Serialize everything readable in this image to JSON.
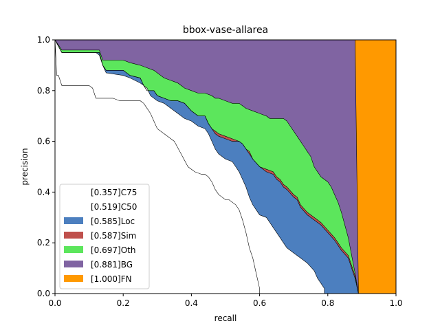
{
  "chart_data": {
    "type": "area",
    "title": "bbox-vase-allarea",
    "xlabel": "recall",
    "ylabel": "precision",
    "xlim": [
      0,
      1
    ],
    "ylim": [
      0,
      1
    ],
    "xticks": [
      "0.0",
      "0.2",
      "0.4",
      "0.6",
      "0.8",
      "1.0"
    ],
    "yticks": [
      "0.0",
      "0.2",
      "0.4",
      "0.6",
      "0.8",
      "1.0"
    ],
    "grid": false,
    "legend_position": "lower-left",
    "series": [
      {
        "name": "[0.357]C75",
        "color": "#ffffff",
        "points": [
          [
            0,
            1.0
          ],
          [
            0.005,
            0.86
          ],
          [
            0.01,
            0.86
          ],
          [
            0.02,
            0.82
          ],
          [
            0.1,
            0.82
          ],
          [
            0.11,
            0.81
          ],
          [
            0.12,
            0.77
          ],
          [
            0.17,
            0.77
          ],
          [
            0.19,
            0.76
          ],
          [
            0.25,
            0.76
          ],
          [
            0.26,
            0.75
          ],
          [
            0.27,
            0.73
          ],
          [
            0.28,
            0.71
          ],
          [
            0.29,
            0.68
          ],
          [
            0.3,
            0.65
          ],
          [
            0.32,
            0.63
          ],
          [
            0.33,
            0.62
          ],
          [
            0.35,
            0.6
          ],
          [
            0.37,
            0.55
          ],
          [
            0.39,
            0.5
          ],
          [
            0.41,
            0.48
          ],
          [
            0.43,
            0.47
          ],
          [
            0.44,
            0.47
          ],
          [
            0.45,
            0.46
          ],
          [
            0.46,
            0.44
          ],
          [
            0.47,
            0.41
          ],
          [
            0.48,
            0.39
          ],
          [
            0.5,
            0.37
          ],
          [
            0.51,
            0.37
          ],
          [
            0.53,
            0.35
          ],
          [
            0.54,
            0.33
          ],
          [
            0.55,
            0.29
          ],
          [
            0.56,
            0.24
          ],
          [
            0.57,
            0.18
          ],
          [
            0.58,
            0.14
          ],
          [
            0.59,
            0.08
          ],
          [
            0.6,
            0.02
          ],
          [
            0.6,
            0
          ]
        ]
      },
      {
        "name": "[0.519]C50",
        "color": "#ffffff",
        "points": [
          [
            0,
            1.0
          ],
          [
            0.02,
            0.95
          ],
          [
            0.12,
            0.95
          ],
          [
            0.13,
            0.94
          ],
          [
            0.14,
            0.9
          ],
          [
            0.15,
            0.87
          ],
          [
            0.2,
            0.86
          ],
          [
            0.22,
            0.85
          ],
          [
            0.25,
            0.83
          ],
          [
            0.26,
            0.82
          ],
          [
            0.27,
            0.81
          ],
          [
            0.28,
            0.78
          ],
          [
            0.3,
            0.76
          ],
          [
            0.32,
            0.75
          ],
          [
            0.34,
            0.73
          ],
          [
            0.36,
            0.71
          ],
          [
            0.38,
            0.69
          ],
          [
            0.4,
            0.68
          ],
          [
            0.42,
            0.66
          ],
          [
            0.44,
            0.65
          ],
          [
            0.45,
            0.63
          ],
          [
            0.46,
            0.6
          ],
          [
            0.47,
            0.57
          ],
          [
            0.48,
            0.55
          ],
          [
            0.5,
            0.53
          ],
          [
            0.52,
            0.52
          ],
          [
            0.53,
            0.5
          ],
          [
            0.54,
            0.48
          ],
          [
            0.55,
            0.45
          ],
          [
            0.56,
            0.42
          ],
          [
            0.57,
            0.38
          ],
          [
            0.58,
            0.35
          ],
          [
            0.59,
            0.33
          ],
          [
            0.6,
            0.31
          ],
          [
            0.62,
            0.3
          ],
          [
            0.63,
            0.28
          ],
          [
            0.64,
            0.26
          ],
          [
            0.65,
            0.24
          ],
          [
            0.66,
            0.22
          ],
          [
            0.67,
            0.2
          ],
          [
            0.68,
            0.18
          ],
          [
            0.7,
            0.16
          ],
          [
            0.72,
            0.14
          ],
          [
            0.74,
            0.12
          ],
          [
            0.76,
            0.09
          ],
          [
            0.77,
            0.06
          ],
          [
            0.78,
            0.04
          ],
          [
            0.79,
            0.02
          ],
          [
            0.79,
            0
          ]
        ]
      },
      {
        "name": "[0.585]Loc",
        "color": "#4c7fbf",
        "points": [
          [
            0,
            1.0
          ],
          [
            0.02,
            0.95
          ],
          [
            0.13,
            0.95
          ],
          [
            0.14,
            0.9
          ],
          [
            0.15,
            0.88
          ],
          [
            0.2,
            0.88
          ],
          [
            0.22,
            0.86
          ],
          [
            0.25,
            0.85
          ],
          [
            0.26,
            0.82
          ],
          [
            0.27,
            0.8
          ],
          [
            0.29,
            0.8
          ],
          [
            0.3,
            0.78
          ],
          [
            0.32,
            0.77
          ],
          [
            0.34,
            0.76
          ],
          [
            0.36,
            0.76
          ],
          [
            0.38,
            0.75
          ],
          [
            0.4,
            0.72
          ],
          [
            0.42,
            0.7
          ],
          [
            0.44,
            0.7
          ],
          [
            0.45,
            0.67
          ],
          [
            0.46,
            0.65
          ],
          [
            0.47,
            0.63
          ],
          [
            0.48,
            0.62
          ],
          [
            0.5,
            0.61
          ],
          [
            0.52,
            0.6
          ],
          [
            0.54,
            0.6
          ],
          [
            0.55,
            0.59
          ],
          [
            0.56,
            0.57
          ],
          [
            0.57,
            0.55
          ],
          [
            0.58,
            0.53
          ],
          [
            0.6,
            0.5
          ],
          [
            0.62,
            0.48
          ],
          [
            0.64,
            0.47
          ],
          [
            0.65,
            0.45
          ],
          [
            0.66,
            0.44
          ],
          [
            0.67,
            0.42
          ],
          [
            0.68,
            0.41
          ],
          [
            0.7,
            0.38
          ],
          [
            0.71,
            0.37
          ],
          [
            0.72,
            0.34
          ],
          [
            0.74,
            0.31
          ],
          [
            0.76,
            0.29
          ],
          [
            0.78,
            0.27
          ],
          [
            0.8,
            0.24
          ],
          [
            0.82,
            0.21
          ],
          [
            0.83,
            0.19
          ],
          [
            0.84,
            0.17
          ],
          [
            0.86,
            0.14
          ],
          [
            0.87,
            0.1
          ],
          [
            0.88,
            0.06
          ],
          [
            0.885,
            0.03
          ],
          [
            0.89,
            0
          ]
        ]
      },
      {
        "name": "[0.587]Sim",
        "color": "#bf504c",
        "points": [
          [
            0,
            1.0
          ],
          [
            0.02,
            0.95
          ],
          [
            0.13,
            0.95
          ],
          [
            0.14,
            0.9
          ],
          [
            0.15,
            0.88
          ],
          [
            0.2,
            0.88
          ],
          [
            0.22,
            0.86
          ],
          [
            0.25,
            0.85
          ],
          [
            0.26,
            0.82
          ],
          [
            0.27,
            0.8
          ],
          [
            0.29,
            0.8
          ],
          [
            0.3,
            0.78
          ],
          [
            0.32,
            0.77
          ],
          [
            0.34,
            0.76
          ],
          [
            0.36,
            0.76
          ],
          [
            0.38,
            0.75
          ],
          [
            0.4,
            0.72
          ],
          [
            0.42,
            0.7
          ],
          [
            0.44,
            0.7
          ],
          [
            0.45,
            0.67
          ],
          [
            0.46,
            0.65
          ],
          [
            0.47,
            0.64
          ],
          [
            0.48,
            0.63
          ],
          [
            0.5,
            0.62
          ],
          [
            0.52,
            0.61
          ],
          [
            0.54,
            0.6
          ],
          [
            0.55,
            0.59
          ],
          [
            0.56,
            0.57
          ],
          [
            0.57,
            0.56
          ],
          [
            0.58,
            0.53
          ],
          [
            0.6,
            0.5
          ],
          [
            0.62,
            0.49
          ],
          [
            0.64,
            0.48
          ],
          [
            0.65,
            0.46
          ],
          [
            0.66,
            0.45
          ],
          [
            0.67,
            0.43
          ],
          [
            0.68,
            0.42
          ],
          [
            0.7,
            0.39
          ],
          [
            0.71,
            0.38
          ],
          [
            0.72,
            0.35
          ],
          [
            0.74,
            0.32
          ],
          [
            0.76,
            0.3
          ],
          [
            0.78,
            0.28
          ],
          [
            0.8,
            0.25
          ],
          [
            0.82,
            0.22
          ],
          [
            0.83,
            0.2
          ],
          [
            0.84,
            0.18
          ],
          [
            0.86,
            0.15
          ],
          [
            0.87,
            0.11
          ],
          [
            0.88,
            0.07
          ],
          [
            0.885,
            0.03
          ],
          [
            0.89,
            0
          ]
        ]
      },
      {
        "name": "[0.697]Oth",
        "color": "#5ce65c",
        "points": [
          [
            0,
            1.0
          ],
          [
            0.02,
            0.96
          ],
          [
            0.13,
            0.96
          ],
          [
            0.14,
            0.92
          ],
          [
            0.16,
            0.92
          ],
          [
            0.2,
            0.92
          ],
          [
            0.22,
            0.91
          ],
          [
            0.25,
            0.9
          ],
          [
            0.27,
            0.89
          ],
          [
            0.29,
            0.88
          ],
          [
            0.3,
            0.87
          ],
          [
            0.32,
            0.85
          ],
          [
            0.34,
            0.84
          ],
          [
            0.36,
            0.83
          ],
          [
            0.38,
            0.81
          ],
          [
            0.4,
            0.8
          ],
          [
            0.42,
            0.79
          ],
          [
            0.44,
            0.79
          ],
          [
            0.46,
            0.78
          ],
          [
            0.47,
            0.77
          ],
          [
            0.48,
            0.77
          ],
          [
            0.5,
            0.76
          ],
          [
            0.52,
            0.75
          ],
          [
            0.54,
            0.75
          ],
          [
            0.55,
            0.74
          ],
          [
            0.56,
            0.73
          ],
          [
            0.58,
            0.72
          ],
          [
            0.6,
            0.71
          ],
          [
            0.62,
            0.7
          ],
          [
            0.63,
            0.69
          ],
          [
            0.65,
            0.69
          ],
          [
            0.67,
            0.69
          ],
          [
            0.68,
            0.68
          ],
          [
            0.69,
            0.66
          ],
          [
            0.7,
            0.64
          ],
          [
            0.71,
            0.62
          ],
          [
            0.72,
            0.6
          ],
          [
            0.73,
            0.58
          ],
          [
            0.74,
            0.56
          ],
          [
            0.75,
            0.54
          ],
          [
            0.76,
            0.5
          ],
          [
            0.77,
            0.48
          ],
          [
            0.78,
            0.46
          ],
          [
            0.8,
            0.44
          ],
          [
            0.81,
            0.42
          ],
          [
            0.82,
            0.39
          ],
          [
            0.83,
            0.36
          ],
          [
            0.84,
            0.32
          ],
          [
            0.85,
            0.27
          ],
          [
            0.86,
            0.22
          ],
          [
            0.87,
            0.15
          ],
          [
            0.88,
            0.08
          ],
          [
            0.885,
            0.04
          ],
          [
            0.89,
            0
          ]
        ]
      },
      {
        "name": "[0.881]BG",
        "color": "#8064a2",
        "points": [
          [
            0,
            1.0
          ],
          [
            0.88,
            1.0
          ],
          [
            0.89,
            0
          ]
        ]
      },
      {
        "name": "[1.000]FN",
        "color": "#ff9900",
        "points": [
          [
            0,
            1.0
          ],
          [
            1.0,
            1.0
          ],
          [
            1.0,
            0
          ]
        ]
      }
    ]
  }
}
